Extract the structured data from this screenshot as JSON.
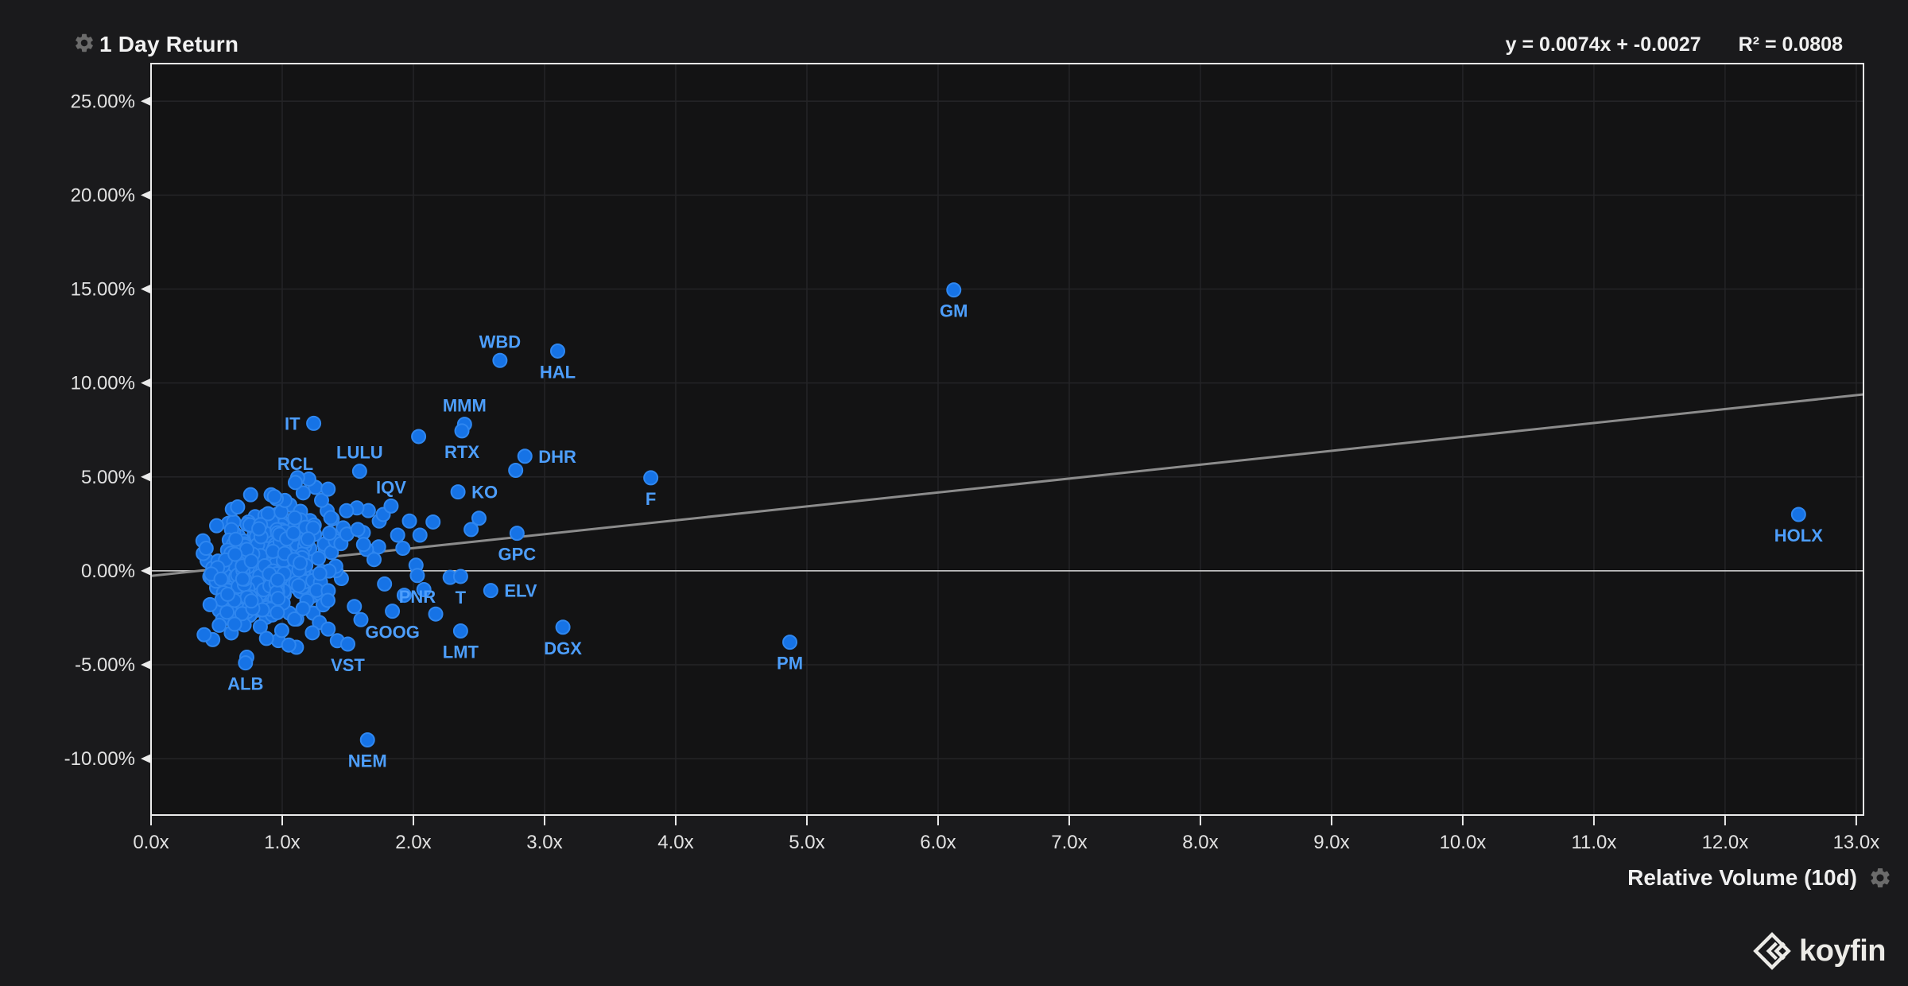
{
  "header": {
    "title": "1 Day Return",
    "equation": "y = 0.0074x + -0.0027",
    "r_squared": "R² = 0.0808"
  },
  "x_axis": {
    "label": "Relative Volume (10d)",
    "ticks": [
      {
        "value": 0,
        "label": "0.0x"
      },
      {
        "value": 1,
        "label": "1.0x"
      },
      {
        "value": 2,
        "label": "2.0x"
      },
      {
        "value": 3,
        "label": "3.0x"
      },
      {
        "value": 4,
        "label": "4.0x"
      },
      {
        "value": 5,
        "label": "5.0x"
      },
      {
        "value": 6,
        "label": "6.0x"
      },
      {
        "value": 7,
        "label": "7.0x"
      },
      {
        "value": 8,
        "label": "8.0x"
      },
      {
        "value": 9,
        "label": "9.0x"
      },
      {
        "value": 10,
        "label": "10.0x"
      },
      {
        "value": 11,
        "label": "11.0x"
      },
      {
        "value": 12,
        "label": "12.0x"
      },
      {
        "value": 13,
        "label": "13.0x"
      }
    ]
  },
  "y_axis": {
    "ticks": [
      {
        "value": 25,
        "label": "25.00%"
      },
      {
        "value": 20,
        "label": "20.00%"
      },
      {
        "value": 15,
        "label": "15.00%"
      },
      {
        "value": 10,
        "label": "10.00%"
      },
      {
        "value": 5,
        "label": "5.00%"
      },
      {
        "value": 0,
        "label": "0.00%"
      },
      {
        "value": -5,
        "label": "-5.00%"
      },
      {
        "value": -10,
        "label": "-10.00%"
      }
    ]
  },
  "branding": {
    "logo_text": "koyfin"
  },
  "colors": {
    "background": "#1a1a1c",
    "plot_background": "#131314",
    "grid": "#242427",
    "axis_border": "#ebebeb",
    "zero_line": "#d8d8d8",
    "trend_line": "#8c8c8c",
    "dot_fill": "#1673e6",
    "dot_stroke": "#2f87f0",
    "point_label": "#4d9efc",
    "tick_text": "#e2e2e2",
    "gear_icon": "#6b6b6b"
  },
  "chart_data": {
    "type": "scatter",
    "title": "1 Day Return",
    "xlabel": "Relative Volume (10d)",
    "ylabel": "1 Day Return (%)",
    "xlim": [
      0,
      13.055
    ],
    "ylim": [
      -13,
      27
    ],
    "grid": true,
    "regression": {
      "slope": 0.0074,
      "intercept": -0.0027,
      "r_squared": 0.0808
    },
    "zero_line": 0,
    "labeled_points": [
      {
        "ticker": "IT",
        "x": 1.24,
        "y": 7.85,
        "label_pos": "left"
      },
      {
        "ticker": "RCL",
        "x": 1.1,
        "y": 4.7,
        "label_pos": "above"
      },
      {
        "ticker": "LULU",
        "x": 1.59,
        "y": 5.3,
        "label_pos": "above"
      },
      {
        "ticker": "WBD",
        "x": 2.66,
        "y": 11.2,
        "label_pos": "above"
      },
      {
        "ticker": "HAL",
        "x": 3.1,
        "y": 11.7,
        "label_pos": "below"
      },
      {
        "ticker": "MMM",
        "x": 2.39,
        "y": 7.8,
        "label_pos": "above"
      },
      {
        "ticker": "RTX",
        "x": 2.37,
        "y": 7.45,
        "label_pos": "below"
      },
      {
        "ticker": "DHR",
        "x": 2.85,
        "y": 6.1,
        "label_pos": "right"
      },
      {
        "ticker": "IQV",
        "x": 1.83,
        "y": 3.45,
        "label_pos": "above"
      },
      {
        "ticker": "KO",
        "x": 2.34,
        "y": 4.2,
        "label_pos": "right"
      },
      {
        "ticker": "F",
        "x": 3.81,
        "y": 4.95,
        "label_pos": "below"
      },
      {
        "ticker": "GPC",
        "x": 2.79,
        "y": 2.0,
        "label_pos": "below"
      },
      {
        "ticker": "GM",
        "x": 6.12,
        "y": 14.95,
        "label_pos": "below"
      },
      {
        "ticker": "HOLX",
        "x": 12.56,
        "y": 3.0,
        "label_pos": "below"
      },
      {
        "ticker": "PNR",
        "x": 2.03,
        "y": -0.25,
        "label_pos": "below"
      },
      {
        "ticker": "T",
        "x": 2.36,
        "y": -0.3,
        "label_pos": "below"
      },
      {
        "ticker": "ELV",
        "x": 2.59,
        "y": -1.05,
        "label_pos": "right"
      },
      {
        "ticker": "GOOG",
        "x": 1.84,
        "y": -2.15,
        "label_pos": "below"
      },
      {
        "ticker": "LMT",
        "x": 2.36,
        "y": -3.2,
        "label_pos": "below"
      },
      {
        "ticker": "DGX",
        "x": 3.14,
        "y": -3.0,
        "label_pos": "below"
      },
      {
        "ticker": "VST",
        "x": 1.5,
        "y": -3.9,
        "label_pos": "below"
      },
      {
        "ticker": "PM",
        "x": 4.87,
        "y": -3.8,
        "label_pos": "below"
      },
      {
        "ticker": "ALB",
        "x": 0.72,
        "y": -4.9,
        "label_pos": "below"
      },
      {
        "ticker": "NEM",
        "x": 1.65,
        "y": -9.0,
        "label_pos": "below"
      }
    ],
    "extra_points": [
      [
        2.04,
        7.15
      ],
      [
        2.78,
        5.35
      ],
      [
        2.5,
        2.8
      ],
      [
        2.44,
        2.2
      ],
      [
        2.15,
        2.6
      ],
      [
        1.97,
        2.65
      ],
      [
        1.88,
        1.9
      ],
      [
        1.74,
        2.65
      ],
      [
        1.77,
        3.0
      ],
      [
        1.49,
        3.2
      ],
      [
        2.17,
        -2.3
      ],
      [
        2.28,
        -0.35
      ],
      [
        2.02,
        0.3
      ],
      [
        1.42,
        -3.72
      ],
      [
        1.3,
        3.75
      ],
      [
        1.35,
        4.35
      ],
      [
        0.94,
        3.95
      ],
      [
        1.16,
        4.15
      ],
      [
        1.62,
        1.4
      ],
      [
        1.7,
        0.6
      ],
      [
        1.78,
        -0.7
      ],
      [
        1.55,
        -1.9
      ],
      [
        1.6,
        -2.6
      ],
      [
        1.35,
        -3.1
      ],
      [
        1.23,
        -3.3
      ],
      [
        0.52,
        -2.9
      ],
      [
        0.45,
        -1.8
      ],
      [
        0.42,
        1.2
      ],
      [
        0.5,
        2.4
      ],
      [
        0.66,
        3.4
      ],
      [
        0.73,
        -4.6
      ],
      [
        1.05,
        -3.95
      ],
      [
        0.88,
        -3.6
      ],
      [
        1.93,
        -1.3
      ],
      [
        2.08,
        -1.0
      ],
      [
        1.92,
        1.2
      ],
      [
        2.05,
        1.9
      ]
    ],
    "background_cluster": [
      {
        "count": 330,
        "cx": 0.85,
        "cy": 0.35,
        "sx": 0.17,
        "sy": 1.15,
        "tilt": 1.6,
        "seed": 11
      },
      {
        "count": 150,
        "cx": 0.95,
        "cy": -0.15,
        "sx": 0.32,
        "sy": 2.05,
        "tilt": 1.2,
        "seed": 97
      }
    ],
    "cluster_bounds": {
      "xmin": 0.35,
      "xmax": 2.08,
      "ymin": -4.8,
      "ymax": 5.25
    }
  }
}
